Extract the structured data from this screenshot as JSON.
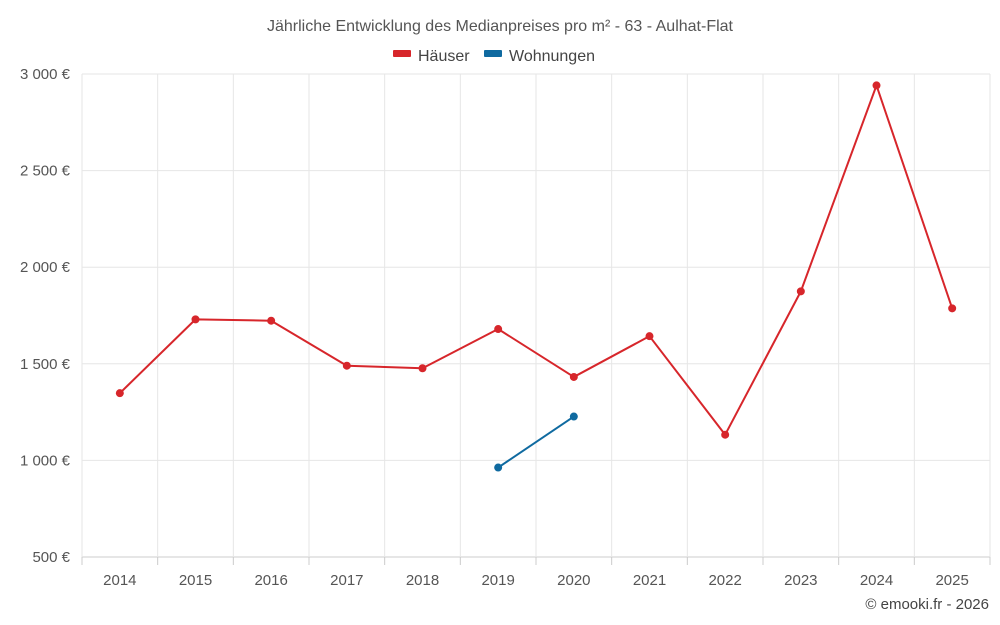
{
  "chart_data": {
    "type": "line",
    "title": "Jährliche Entwicklung des Medianpreises pro m² - 63 - Aulhat-Flat",
    "x": [
      "2014",
      "2015",
      "2016",
      "2017",
      "2018",
      "2019",
      "2020",
      "2021",
      "2022",
      "2023",
      "2024",
      "2025"
    ],
    "ylim": [
      500,
      3000
    ],
    "yticks": [
      500,
      1000,
      1500,
      2000,
      2500,
      3000
    ],
    "ytick_labels": [
      "500 €",
      "1 000 €",
      "1 500 €",
      "2 000 €",
      "2 500 €",
      "3 000 €"
    ],
    "grid": true,
    "legend_position": "top-center",
    "series": [
      {
        "name": "Häuser",
        "color": "#d7262b",
        "values": [
          1348,
          1730,
          1723,
          1490,
          1477,
          1680,
          1432,
          1643,
          1133,
          1875,
          2941,
          1787
        ]
      },
      {
        "name": "Wohnungen",
        "color": "#0f6aa0",
        "values": [
          null,
          null,
          null,
          null,
          null,
          963,
          1227,
          null,
          null,
          null,
          null,
          null
        ]
      }
    ]
  },
  "credit": "© emooki.fr - 2026"
}
